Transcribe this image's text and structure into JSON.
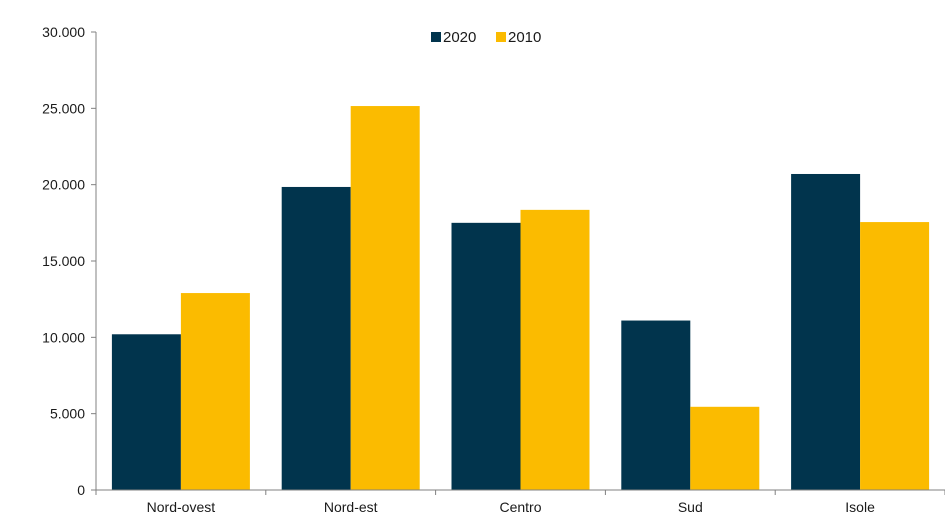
{
  "chart_data": {
    "type": "bar",
    "categories": [
      "Nord-ovest",
      "Nord-est",
      "Centro",
      "Sud",
      "Isole"
    ],
    "series": [
      {
        "name": "2020",
        "color": "#01344d",
        "values": [
          10200,
          19850,
          17500,
          11100,
          20700
        ]
      },
      {
        "name": "2010",
        "color": "#fbbb00",
        "values": [
          12900,
          25150,
          18350,
          5450,
          17550
        ]
      }
    ],
    "title": "",
    "xlabel": "",
    "ylabel": "",
    "ylim": [
      0,
      30000
    ],
    "yticks": [
      0,
      5000,
      10000,
      15000,
      20000,
      25000,
      30000
    ],
    "ytick_labels": [
      "0",
      "5.000",
      "10.000",
      "15.000",
      "20.000",
      "25.000",
      "30.000"
    ],
    "grid": false,
    "legend_position": "top-center"
  }
}
